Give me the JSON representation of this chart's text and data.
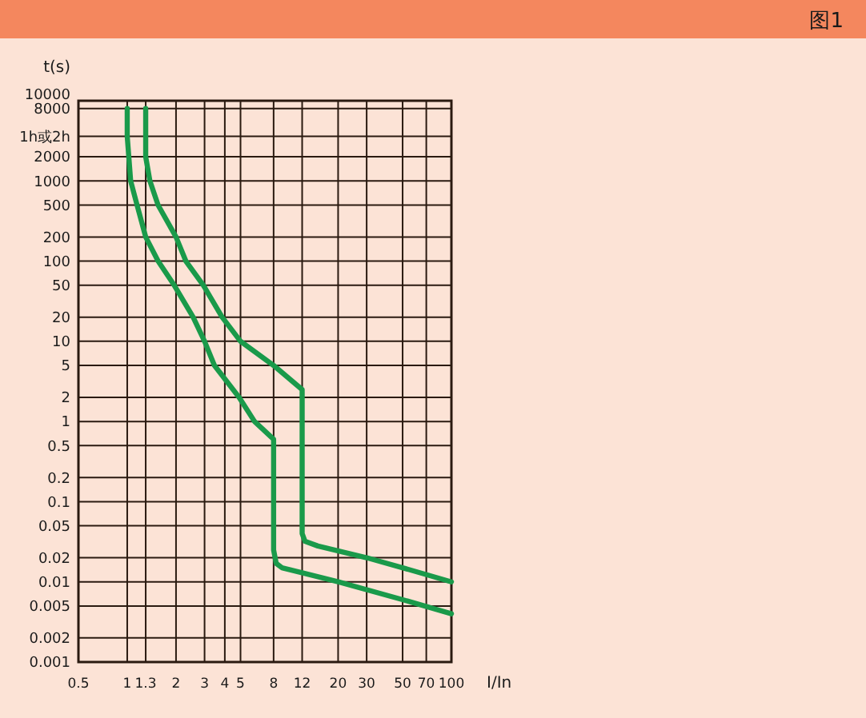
{
  "chart_data": {
    "type": "line",
    "title": "图1",
    "xlabel": "I/In",
    "ylabel": "t(s)",
    "log": "xy",
    "grid": true,
    "marker": "none",
    "line_style": "solid",
    "xlim": [
      0.5,
      100
    ],
    "xticks": [
      0.5,
      1,
      1.3,
      2,
      3,
      4,
      5,
      8,
      12,
      20,
      30,
      50,
      70,
      100
    ],
    "ylim": [
      0.001,
      10000
    ],
    "yticks": [
      0.001,
      0.002,
      0.005,
      0.01,
      0.02,
      0.05,
      0.1,
      0.2,
      0.5,
      1,
      2,
      5,
      10,
      20,
      50,
      100,
      200,
      500,
      1000,
      2000,
      {
        "value": 3600,
        "label": "1h或2h"
      },
      8000,
      10000
    ],
    "series": [
      {
        "color": "#1a9a4a",
        "x": [
          1.0,
          1.0,
          1.05,
          1.15,
          1.3,
          1.55,
          1.95,
          2.55,
          3.0,
          3.45,
          4.9,
          6.1,
          8,
          8,
          8.3,
          9,
          12,
          20,
          50,
          100
        ],
        "values": [
          8000,
          3600,
          1000,
          500,
          200,
          100,
          50,
          20,
          10,
          5,
          2,
          1,
          0.6,
          0.025,
          0.017,
          0.015,
          0.013,
          0.01,
          0.006,
          0.004
        ]
      },
      {
        "color": "#1a9a4a",
        "x": [
          1.3,
          1.3,
          1.3,
          1.38,
          1.55,
          2.0,
          2.3,
          2.95,
          3.85,
          5,
          8,
          12,
          12,
          12.5,
          15,
          30,
          50,
          100
        ],
        "values": [
          8000,
          3600,
          2000,
          1000,
          500,
          200,
          100,
          50,
          20,
          10,
          5,
          2.5,
          0.04,
          0.032,
          0.028,
          0.02,
          0.015,
          0.01
        ]
      }
    ]
  }
}
